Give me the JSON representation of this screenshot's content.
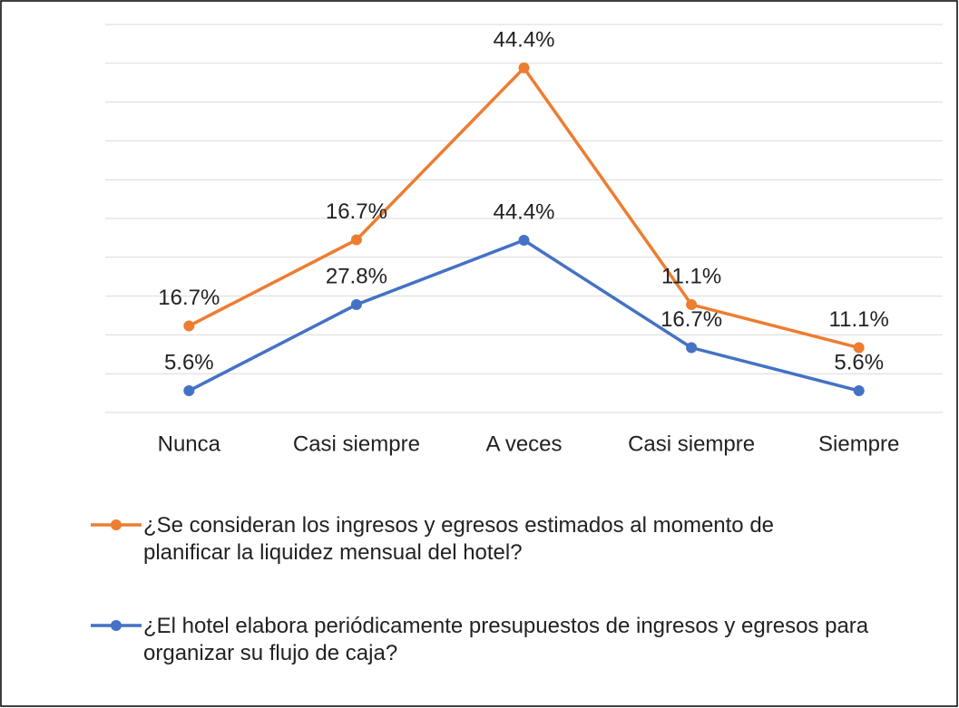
{
  "chart_data": {
    "type": "line",
    "stacked": true,
    "categories": [
      "Nunca",
      "Casi siempre",
      "A veces",
      "Casi siempre",
      "Siempre"
    ],
    "series": [
      {
        "name": "¿Se consideran los ingresos y egresos estimados al momento de planificar la liquidez mensual del hotel?",
        "color": "#ed7d31",
        "values": [
          16.7,
          16.7,
          44.4,
          11.1,
          11.1
        ],
        "value_labels": [
          "16.7%",
          "16.7%",
          "44.4%",
          "11.1%",
          "11.1%"
        ]
      },
      {
        "name": "¿El hotel elabora periódicamente presupuestos de ingresos y egresos para organizar su flujo de caja?",
        "color": "#4472c4",
        "values": [
          5.6,
          27.8,
          44.4,
          16.7,
          5.6
        ],
        "value_labels": [
          "5.6%",
          "27.8%",
          "44.4%",
          "16.7%",
          "5.6%"
        ]
      }
    ],
    "ylim": [
      0,
      100
    ],
    "yticks": [
      0,
      10,
      20,
      30,
      40,
      50,
      60,
      70,
      80,
      90,
      100
    ],
    "grid": true,
    "legend": "bottom"
  }
}
